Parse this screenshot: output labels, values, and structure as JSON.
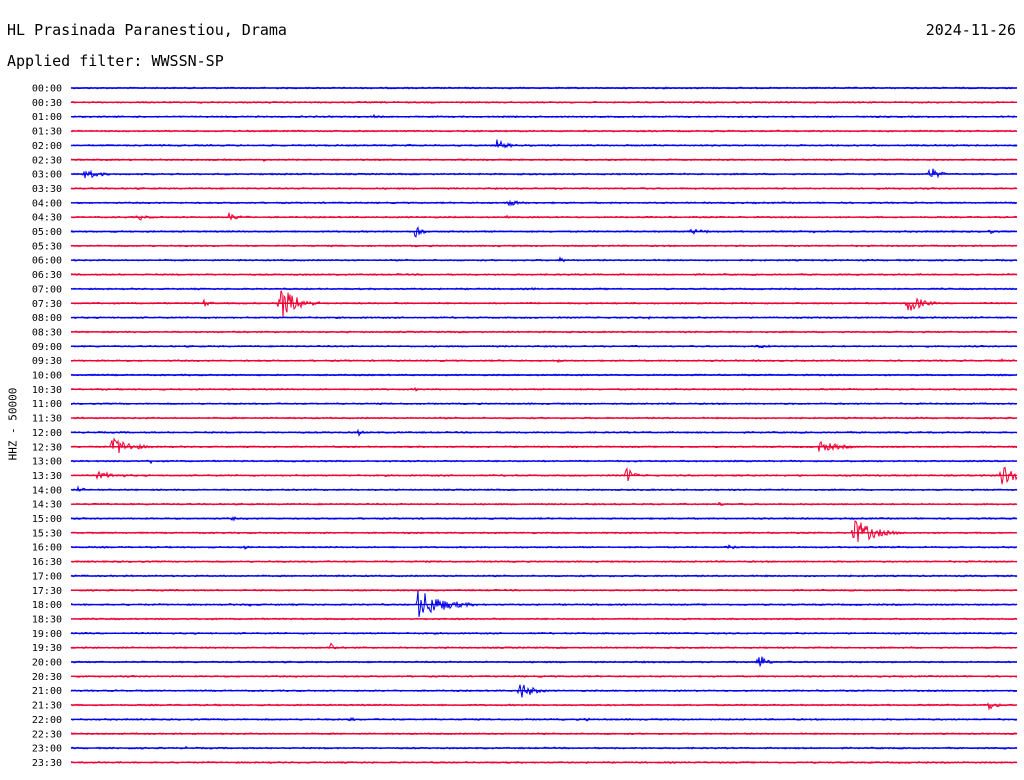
{
  "header": {
    "station": "HL Prasinada Paranestiou, Drama",
    "date": "2024-11-26",
    "filter": "Applied filter: WWSSN-SP"
  },
  "colors": {
    "even_line": "#0000ee",
    "odd_line": "#ee0033",
    "text": "#000000",
    "background": "#ffffff"
  },
  "chart_data": {
    "type": "line",
    "title": "HL Prasinada Paranestiou, Drama",
    "ylabel": "HHZ - 50000",
    "xlabel": "",
    "grid": false,
    "legend": "none",
    "x_unit": "minutes within each 30-minute row",
    "xlim": [
      0,
      30
    ],
    "row_labels": [
      "00:00",
      "00:30",
      "01:00",
      "01:30",
      "02:00",
      "02:30",
      "03:00",
      "03:30",
      "04:00",
      "04:30",
      "05:00",
      "05:30",
      "06:00",
      "06:30",
      "07:00",
      "07:30",
      "08:00",
      "08:30",
      "09:00",
      "09:30",
      "10:00",
      "10:30",
      "11:00",
      "11:30",
      "12:00",
      "12:30",
      "13:00",
      "13:30",
      "14:00",
      "14:30",
      "15:00",
      "15:30",
      "16:00",
      "16:30",
      "17:00",
      "17:30",
      "18:00",
      "18:30",
      "19:00",
      "19:30",
      "20:00",
      "20:30",
      "21:00",
      "21:30",
      "22:00",
      "22:30",
      "23:00",
      "23:30"
    ],
    "events": [
      {
        "row": "00:00",
        "minute": 6.3,
        "amplitude": 1.5,
        "duration": 0.1
      },
      {
        "row": "00:00",
        "minute": 9.5,
        "amplitude": 1.5,
        "duration": 0.1
      },
      {
        "row": "01:00",
        "minute": 9.6,
        "amplitude": 2,
        "duration": 0.6
      },
      {
        "row": "02:00",
        "minute": 10.6,
        "amplitude": 2,
        "duration": 0.8
      },
      {
        "row": "02:00",
        "minute": 13.5,
        "amplitude": 6,
        "duration": 1
      },
      {
        "row": "02:30",
        "minute": 6.1,
        "amplitude": 2,
        "duration": 0.4
      },
      {
        "row": "03:00",
        "minute": 0.4,
        "amplitude": 7,
        "duration": 1.2
      },
      {
        "row": "03:00",
        "minute": 27.2,
        "amplitude": 9,
        "duration": 0.8
      },
      {
        "row": "04:00",
        "minute": 13.8,
        "amplitude": 4,
        "duration": 1.3
      },
      {
        "row": "04:30",
        "minute": 2.1,
        "amplitude": 4,
        "duration": 1
      },
      {
        "row": "04:30",
        "minute": 5,
        "amplitude": 4,
        "duration": 1.4
      },
      {
        "row": "04:30",
        "minute": 13.8,
        "amplitude": 2,
        "duration": 0.4
      },
      {
        "row": "05:00",
        "minute": 10.9,
        "amplitude": 9,
        "duration": 0.6
      },
      {
        "row": "05:00",
        "minute": 19.6,
        "amplitude": 3,
        "duration": 2
      },
      {
        "row": "05:00",
        "minute": 23.5,
        "amplitude": 2,
        "duration": 1
      },
      {
        "row": "05:00",
        "minute": 29.1,
        "amplitude": 3,
        "duration": 0.6
      },
      {
        "row": "06:00",
        "minute": 15.5,
        "amplitude": 3,
        "duration": 0.7
      },
      {
        "row": "07:00",
        "minute": 14.6,
        "amplitude": 2,
        "duration": 0.5
      },
      {
        "row": "07:30",
        "minute": 4.2,
        "amplitude": 4,
        "duration": 0.8
      },
      {
        "row": "07:30",
        "minute": 6.6,
        "amplitude": 20,
        "duration": 1.5
      },
      {
        "row": "07:30",
        "minute": 26.5,
        "amplitude": 12,
        "duration": 1.2
      },
      {
        "row": "08:00",
        "minute": 18.3,
        "amplitude": 1.5,
        "duration": 1.5
      },
      {
        "row": "09:00",
        "minute": 21.7,
        "amplitude": 2,
        "duration": 2.5
      },
      {
        "row": "09:30",
        "minute": 15.4,
        "amplitude": 3,
        "duration": 0.4
      },
      {
        "row": "09:30",
        "minute": 29.5,
        "amplitude": 2,
        "duration": 0.5
      },
      {
        "row": "10:30",
        "minute": 10.9,
        "amplitude": 2,
        "duration": 0.6
      },
      {
        "row": "12:00",
        "minute": 9.1,
        "amplitude": 4,
        "duration": 0.5
      },
      {
        "row": "12:30",
        "minute": 1.3,
        "amplitude": 11,
        "duration": 1.6
      },
      {
        "row": "12:30",
        "minute": 23.7,
        "amplitude": 6,
        "duration": 2
      },
      {
        "row": "13:00",
        "minute": 2.5,
        "amplitude": 3,
        "duration": 0.6
      },
      {
        "row": "13:30",
        "minute": 0.8,
        "amplitude": 4,
        "duration": 2.5
      },
      {
        "row": "13:30",
        "minute": 17.6,
        "amplitude": 10,
        "duration": 0.6
      },
      {
        "row": "13:30",
        "minute": 29.5,
        "amplitude": 16,
        "duration": 1
      },
      {
        "row": "14:00",
        "minute": 0.2,
        "amplitude": 3,
        "duration": 0.8
      },
      {
        "row": "14:30",
        "minute": 20.5,
        "amplitude": 3,
        "duration": 0.6
      },
      {
        "row": "15:00",
        "minute": 5.1,
        "amplitude": 3,
        "duration": 0.4
      },
      {
        "row": "15:30",
        "minute": 24.8,
        "amplitude": 16,
        "duration": 1.7
      },
      {
        "row": "16:00",
        "minute": 5.4,
        "amplitude": 3,
        "duration": 0.7
      },
      {
        "row": "16:00",
        "minute": 20.8,
        "amplitude": 3,
        "duration": 1
      },
      {
        "row": "18:00",
        "minute": 11,
        "amplitude": 16,
        "duration": 2.2
      },
      {
        "row": "18:00",
        "minute": 5.5,
        "amplitude": 2,
        "duration": 2
      },
      {
        "row": "19:30",
        "minute": 8.2,
        "amplitude": 8,
        "duration": 0.3
      },
      {
        "row": "20:00",
        "minute": 21.8,
        "amplitude": 11,
        "duration": 0.6
      },
      {
        "row": "21:00",
        "minute": 14.2,
        "amplitude": 10,
        "duration": 1.2
      },
      {
        "row": "21:30",
        "minute": 29.1,
        "amplitude": 6,
        "duration": 0.7
      },
      {
        "row": "22:00",
        "minute": 8.8,
        "amplitude": 3,
        "duration": 0.6
      },
      {
        "row": "22:00",
        "minute": 16.3,
        "amplitude": 3,
        "duration": 0.5
      },
      {
        "row": "23:00",
        "minute": 3.6,
        "amplitude": 2,
        "duration": 0.5
      },
      {
        "row": "23:00",
        "minute": 26.6,
        "amplitude": 2,
        "duration": 0.5
      }
    ]
  }
}
